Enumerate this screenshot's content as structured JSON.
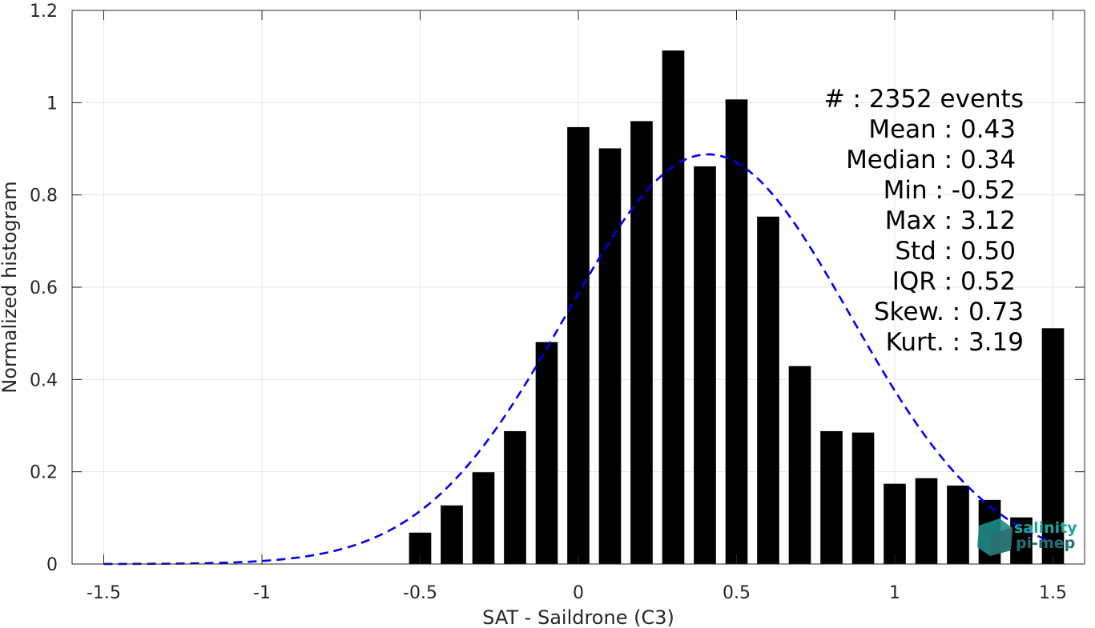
{
  "chart_data": {
    "type": "bar",
    "xlabel": "SAT - Saildrone (C3)",
    "ylabel": "Normalized histogram",
    "xlim": [
      -1.6,
      1.6
    ],
    "ylim": [
      0,
      1.2
    ],
    "grid": true,
    "x_ticks": [
      -1.5,
      -1,
      -0.5,
      0,
      0.5,
      1,
      1.5
    ],
    "x_tick_labels": [
      "-1.5",
      "-1",
      "-0.5",
      "0",
      "0.5",
      "1",
      "1.5"
    ],
    "y_ticks": [
      0,
      0.2,
      0.4,
      0.6,
      0.8,
      1.0,
      1.2
    ],
    "y_tick_labels": [
      "0",
      "0.2",
      "0.4",
      "0.6",
      "0.8",
      "1",
      "1.2"
    ],
    "bar_width": 0.07,
    "bar_color": "#000000",
    "series": [
      {
        "x": [
          -0.5,
          -0.4,
          -0.3,
          -0.2,
          -0.1,
          0.0,
          0.1,
          0.2,
          0.3,
          0.4,
          0.5,
          0.6,
          0.7,
          0.8,
          0.9,
          1.0,
          1.1,
          1.2,
          1.3,
          1.4,
          1.5
        ],
        "values": [
          0.068,
          0.127,
          0.199,
          0.288,
          0.481,
          0.947,
          0.901,
          0.96,
          1.113,
          0.862,
          1.007,
          0.753,
          0.429,
          0.288,
          0.285,
          0.174,
          0.186,
          0.17,
          0.139,
          0.101,
          0.511
        ]
      }
    ],
    "fit_curve": {
      "style": "dashed",
      "color": "#0000ee",
      "mean": 0.41,
      "std": 0.45,
      "peak": 0.888,
      "x_range": [
        -1.5,
        1.5
      ]
    },
    "stats": [
      {
        "label": "#  : 2352 events",
        "anchor": "1278"
      },
      {
        "label": "Mean : 0.43",
        "anchor": "1268"
      },
      {
        "label": "Median : 0.34",
        "anchor": "1268"
      },
      {
        "label": "Min : -0.52",
        "anchor": "1268"
      },
      {
        "label": "Max : 3.12",
        "anchor": "1268"
      },
      {
        "label": "Std : 0.50",
        "anchor": "1268"
      },
      {
        "label": "IQR : 0.52",
        "anchor": "1268"
      },
      {
        "label": "Skew. : 0.73",
        "anchor": "1278"
      },
      {
        "label": "Kurt. : 3.19",
        "anchor": "1278"
      }
    ]
  },
  "logo": {
    "line1": "salinity",
    "line2": "pi-mep",
    "color1": "#1aa79a",
    "color2": "#1f6f74"
  }
}
